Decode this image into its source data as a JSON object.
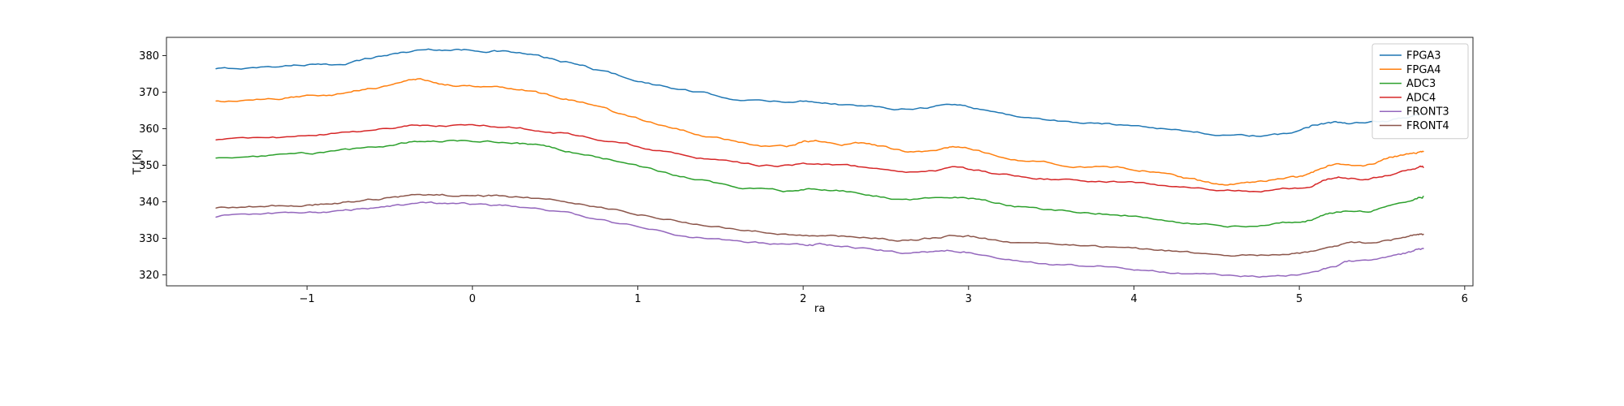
{
  "figure": {
    "background": "#ffffff",
    "axis_color": "#262626",
    "tick_label_color": "#000000"
  },
  "chart_data": {
    "type": "line",
    "title": "",
    "xlabel": "ra",
    "ylabel": "T [K]",
    "xlim": [
      -1.85,
      6.05
    ],
    "ylim": [
      317,
      385
    ],
    "xticks": [
      -1,
      0,
      1,
      2,
      3,
      4,
      5,
      6
    ],
    "yticks": [
      320,
      330,
      340,
      350,
      360,
      370,
      380
    ],
    "grid": false,
    "legend": {
      "position": "upper right",
      "border_color": "#cccccc",
      "entries": [
        "FPGA3",
        "FPGA4",
        "ADC3",
        "ADC4",
        "FRONT3",
        "FRONT4"
      ]
    },
    "series": [
      {
        "name": "FPGA3",
        "color": "#1f77b4",
        "points": [
          [
            -1.55,
            376.3
          ],
          [
            -1.35,
            376.6
          ],
          [
            -1.15,
            377.2
          ],
          [
            -1.0,
            377.6
          ],
          [
            -0.85,
            377.4
          ],
          [
            -0.7,
            378.6
          ],
          [
            -0.55,
            379.9
          ],
          [
            -0.4,
            381.0
          ],
          [
            -0.25,
            381.7
          ],
          [
            -0.1,
            381.6
          ],
          [
            0.05,
            381.5
          ],
          [
            0.2,
            381.1
          ],
          [
            0.35,
            380.2
          ],
          [
            0.5,
            378.8
          ],
          [
            0.65,
            377.3
          ],
          [
            0.8,
            375.6
          ],
          [
            1.0,
            373.2
          ],
          [
            1.2,
            371.2
          ],
          [
            1.4,
            369.6
          ],
          [
            1.6,
            368.2
          ],
          [
            1.8,
            367.4
          ],
          [
            2.0,
            367.6
          ],
          [
            2.15,
            367.2
          ],
          [
            2.35,
            366.2
          ],
          [
            2.55,
            365.6
          ],
          [
            2.75,
            366.0
          ],
          [
            2.9,
            366.6
          ],
          [
            3.05,
            365.6
          ],
          [
            3.25,
            363.8
          ],
          [
            3.45,
            362.6
          ],
          [
            3.65,
            361.7
          ],
          [
            3.85,
            361.2
          ],
          [
            4.05,
            360.8
          ],
          [
            4.25,
            359.8
          ],
          [
            4.45,
            358.7
          ],
          [
            4.65,
            358.0
          ],
          [
            4.85,
            358.1
          ],
          [
            5.0,
            359.5
          ],
          [
            5.1,
            361.3
          ],
          [
            5.2,
            361.8
          ],
          [
            5.3,
            361.3
          ],
          [
            5.45,
            361.6
          ],
          [
            5.6,
            362.8
          ],
          [
            5.7,
            363.6
          ],
          [
            5.75,
            363.9
          ]
        ]
      },
      {
        "name": "FPGA4",
        "color": "#ff7f0e",
        "points": [
          [
            -1.55,
            367.4
          ],
          [
            -1.35,
            367.6
          ],
          [
            -1.15,
            368.3
          ],
          [
            -1.0,
            368.9
          ],
          [
            -0.85,
            369.5
          ],
          [
            -0.7,
            370.6
          ],
          [
            -0.55,
            371.6
          ],
          [
            -0.4,
            373.0
          ],
          [
            -0.3,
            373.5
          ],
          [
            -0.15,
            372.0
          ],
          [
            0.0,
            371.8
          ],
          [
            0.15,
            371.9
          ],
          [
            0.3,
            370.8
          ],
          [
            0.45,
            369.2
          ],
          [
            0.6,
            367.8
          ],
          [
            0.75,
            366.0
          ],
          [
            0.9,
            364.0
          ],
          [
            1.1,
            361.5
          ],
          [
            1.3,
            359.3
          ],
          [
            1.5,
            357.3
          ],
          [
            1.7,
            355.6
          ],
          [
            1.9,
            355.0
          ],
          [
            2.0,
            356.3
          ],
          [
            2.1,
            356.6
          ],
          [
            2.25,
            355.9
          ],
          [
            2.4,
            356.0
          ],
          [
            2.55,
            354.4
          ],
          [
            2.7,
            353.6
          ],
          [
            2.85,
            354.6
          ],
          [
            2.95,
            355.1
          ],
          [
            3.1,
            353.4
          ],
          [
            3.3,
            351.6
          ],
          [
            3.5,
            350.5
          ],
          [
            3.7,
            349.8
          ],
          [
            3.9,
            349.3
          ],
          [
            4.05,
            348.5
          ],
          [
            4.2,
            347.6
          ],
          [
            4.35,
            346.0
          ],
          [
            4.5,
            344.8
          ],
          [
            4.65,
            345.0
          ],
          [
            4.8,
            345.6
          ],
          [
            4.95,
            346.5
          ],
          [
            5.05,
            347.0
          ],
          [
            5.15,
            349.5
          ],
          [
            5.25,
            350.3
          ],
          [
            5.4,
            350.0
          ],
          [
            5.5,
            351.5
          ],
          [
            5.6,
            352.6
          ],
          [
            5.7,
            353.4
          ],
          [
            5.75,
            353.8
          ]
        ]
      },
      {
        "name": "ADC3",
        "color": "#2ca02c",
        "points": [
          [
            -1.55,
            352.0
          ],
          [
            -1.3,
            352.3
          ],
          [
            -1.1,
            352.8
          ],
          [
            -0.9,
            353.5
          ],
          [
            -0.7,
            354.3
          ],
          [
            -0.5,
            355.4
          ],
          [
            -0.35,
            356.4
          ],
          [
            -0.2,
            356.8
          ],
          [
            0.0,
            356.5
          ],
          [
            0.2,
            356.4
          ],
          [
            0.35,
            355.6
          ],
          [
            0.5,
            354.5
          ],
          [
            0.7,
            352.8
          ],
          [
            0.9,
            350.8
          ],
          [
            1.1,
            348.6
          ],
          [
            1.3,
            346.6
          ],
          [
            1.5,
            344.9
          ],
          [
            1.7,
            343.6
          ],
          [
            1.9,
            342.8
          ],
          [
            2.05,
            343.2
          ],
          [
            2.2,
            343.0
          ],
          [
            2.4,
            342.0
          ],
          [
            2.6,
            340.6
          ],
          [
            2.8,
            340.9
          ],
          [
            2.95,
            341.3
          ],
          [
            3.1,
            340.2
          ],
          [
            3.3,
            338.6
          ],
          [
            3.5,
            337.6
          ],
          [
            3.7,
            337.2
          ],
          [
            3.9,
            336.6
          ],
          [
            4.1,
            335.8
          ],
          [
            4.3,
            334.6
          ],
          [
            4.5,
            333.6
          ],
          [
            4.7,
            333.4
          ],
          [
            4.9,
            334.2
          ],
          [
            5.05,
            335.0
          ],
          [
            5.15,
            336.8
          ],
          [
            5.25,
            337.6
          ],
          [
            5.4,
            337.4
          ],
          [
            5.55,
            339.0
          ],
          [
            5.7,
            340.9
          ],
          [
            5.75,
            341.5
          ]
        ]
      },
      {
        "name": "ADC4",
        "color": "#d62728",
        "points": [
          [
            -1.55,
            357.0
          ],
          [
            -1.3,
            357.2
          ],
          [
            -1.1,
            357.7
          ],
          [
            -0.9,
            358.4
          ],
          [
            -0.7,
            359.2
          ],
          [
            -0.5,
            360.2
          ],
          [
            -0.35,
            360.8
          ],
          [
            -0.2,
            361.0
          ],
          [
            0.0,
            360.8
          ],
          [
            0.2,
            360.5
          ],
          [
            0.4,
            359.6
          ],
          [
            0.6,
            358.4
          ],
          [
            0.8,
            357.0
          ],
          [
            1.0,
            355.2
          ],
          [
            1.2,
            353.4
          ],
          [
            1.4,
            351.9
          ],
          [
            1.6,
            350.6
          ],
          [
            1.8,
            349.8
          ],
          [
            2.0,
            350.3
          ],
          [
            2.2,
            350.1
          ],
          [
            2.4,
            349.2
          ],
          [
            2.6,
            348.3
          ],
          [
            2.8,
            348.8
          ],
          [
            2.95,
            349.2
          ],
          [
            3.1,
            348.2
          ],
          [
            3.3,
            347.0
          ],
          [
            3.5,
            346.3
          ],
          [
            3.7,
            345.9
          ],
          [
            3.9,
            345.5
          ],
          [
            4.1,
            344.9
          ],
          [
            4.3,
            344.0
          ],
          [
            4.5,
            343.1
          ],
          [
            4.7,
            343.0
          ],
          [
            4.9,
            343.6
          ],
          [
            5.05,
            344.3
          ],
          [
            5.15,
            345.9
          ],
          [
            5.25,
            346.6
          ],
          [
            5.4,
            346.4
          ],
          [
            5.55,
            347.5
          ],
          [
            5.7,
            349.0
          ],
          [
            5.75,
            349.4
          ]
        ]
      },
      {
        "name": "FRONT3",
        "color": "#9467bd",
        "points": [
          [
            -1.55,
            336.0
          ],
          [
            -1.35,
            336.3
          ],
          [
            -1.15,
            336.8
          ],
          [
            -1.0,
            337.1
          ],
          [
            -0.85,
            337.3
          ],
          [
            -0.7,
            337.9
          ],
          [
            -0.55,
            338.5
          ],
          [
            -0.4,
            339.1
          ],
          [
            -0.25,
            339.5
          ],
          [
            -0.1,
            339.4
          ],
          [
            0.05,
            339.3
          ],
          [
            0.2,
            338.9
          ],
          [
            0.4,
            337.9
          ],
          [
            0.6,
            336.5
          ],
          [
            0.8,
            334.9
          ],
          [
            1.0,
            333.1
          ],
          [
            1.2,
            331.4
          ],
          [
            1.4,
            330.1
          ],
          [
            1.6,
            329.2
          ],
          [
            1.8,
            328.4
          ],
          [
            2.0,
            328.1
          ],
          [
            2.1,
            328.3
          ],
          [
            2.25,
            327.6
          ],
          [
            2.45,
            326.8
          ],
          [
            2.6,
            326.2
          ],
          [
            2.75,
            326.3
          ],
          [
            2.9,
            326.7
          ],
          [
            3.0,
            326.2
          ],
          [
            3.2,
            324.6
          ],
          [
            3.4,
            323.3
          ],
          [
            3.6,
            322.6
          ],
          [
            3.8,
            322.4
          ],
          [
            4.0,
            321.6
          ],
          [
            4.2,
            320.9
          ],
          [
            4.4,
            320.2
          ],
          [
            4.6,
            319.8
          ],
          [
            4.8,
            319.6
          ],
          [
            4.95,
            320.2
          ],
          [
            5.1,
            320.8
          ],
          [
            5.2,
            322.0
          ],
          [
            5.3,
            323.6
          ],
          [
            5.45,
            323.8
          ],
          [
            5.6,
            325.3
          ],
          [
            5.7,
            326.6
          ],
          [
            5.75,
            327.2
          ]
        ]
      },
      {
        "name": "FRONT4",
        "color": "#8c564b",
        "points": [
          [
            -1.55,
            338.4
          ],
          [
            -1.35,
            338.6
          ],
          [
            -1.15,
            339.0
          ],
          [
            -1.0,
            339.3
          ],
          [
            -0.85,
            339.5
          ],
          [
            -0.7,
            340.2
          ],
          [
            -0.55,
            340.9
          ],
          [
            -0.4,
            341.6
          ],
          [
            -0.25,
            341.9
          ],
          [
            -0.1,
            341.8
          ],
          [
            0.05,
            341.7
          ],
          [
            0.2,
            341.5
          ],
          [
            0.4,
            340.8
          ],
          [
            0.6,
            339.8
          ],
          [
            0.8,
            338.4
          ],
          [
            1.0,
            336.8
          ],
          [
            1.2,
            335.2
          ],
          [
            1.4,
            333.8
          ],
          [
            1.6,
            332.6
          ],
          [
            1.8,
            331.6
          ],
          [
            2.0,
            330.7
          ],
          [
            2.15,
            330.9
          ],
          [
            2.3,
            330.5
          ],
          [
            2.5,
            329.8
          ],
          [
            2.65,
            329.5
          ],
          [
            2.8,
            330.3
          ],
          [
            2.95,
            330.8
          ],
          [
            3.1,
            329.9
          ],
          [
            3.3,
            328.8
          ],
          [
            3.5,
            328.3
          ],
          [
            3.7,
            327.9
          ],
          [
            3.9,
            327.3
          ],
          [
            4.1,
            326.8
          ],
          [
            4.3,
            326.2
          ],
          [
            4.5,
            325.7
          ],
          [
            4.7,
            325.5
          ],
          [
            4.9,
            325.8
          ],
          [
            5.05,
            326.2
          ],
          [
            5.2,
            327.2
          ],
          [
            5.3,
            328.7
          ],
          [
            5.45,
            328.8
          ],
          [
            5.6,
            329.9
          ],
          [
            5.7,
            330.8
          ],
          [
            5.75,
            331.1
          ]
        ]
      }
    ]
  }
}
